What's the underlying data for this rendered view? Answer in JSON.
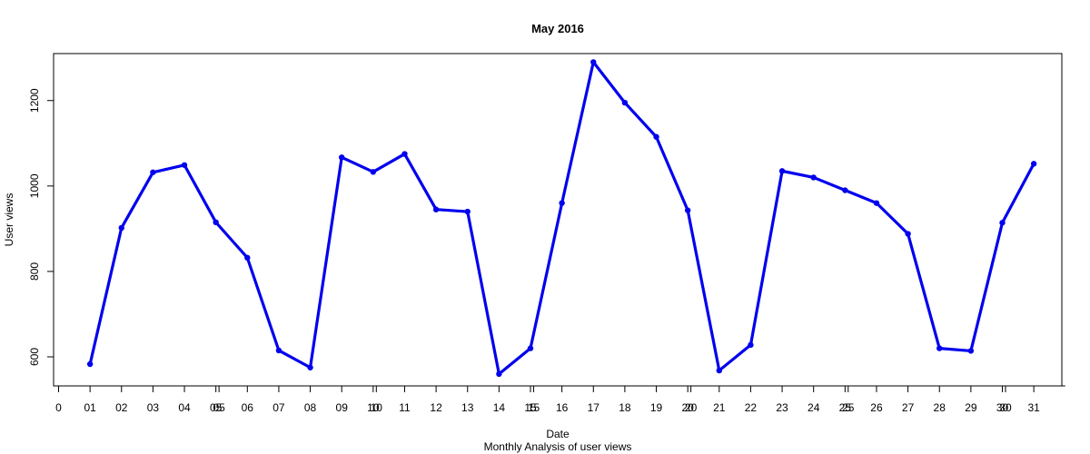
{
  "chart_data": {
    "type": "line",
    "title": "May 2016",
    "xlabel": "Date",
    "ylabel": "User views",
    "subtitle": "Monthly Analysis of user views",
    "x_ticks": [
      "0",
      "01",
      "02",
      "03",
      "04",
      "05",
      "05",
      "06",
      "07",
      "08",
      "09",
      "10",
      "10",
      "11",
      "12",
      "13",
      "14",
      "15",
      "15",
      "16",
      "17",
      "18",
      "19",
      "20",
      "20",
      "21",
      "22",
      "23",
      "24",
      "25",
      "25",
      "26",
      "27",
      "28",
      "29",
      "30",
      "30",
      "31"
    ],
    "y_ticks": [
      600,
      800,
      1000,
      1200
    ],
    "ylim": [
      532,
      1310
    ],
    "xlim": [
      -1,
      33
    ],
    "grid": false,
    "series_color": "#0000ee",
    "x": [
      "01",
      "02",
      "03",
      "04",
      "05",
      "06",
      "07",
      "08",
      "09",
      "10",
      "11",
      "12",
      "13",
      "14",
      "15",
      "16",
      "17",
      "18",
      "19",
      "20",
      "21",
      "22",
      "23",
      "24",
      "25",
      "26",
      "27",
      "28",
      "29",
      "30",
      "31"
    ],
    "values": [
      583,
      902,
      1032,
      1049,
      915,
      832,
      615,
      575,
      1067,
      1033,
      1075,
      945,
      940,
      560,
      620,
      960,
      1290,
      1195,
      1115,
      943,
      568,
      628,
      1035,
      1020,
      990,
      960,
      888,
      620,
      614,
      914,
      1052
    ]
  }
}
